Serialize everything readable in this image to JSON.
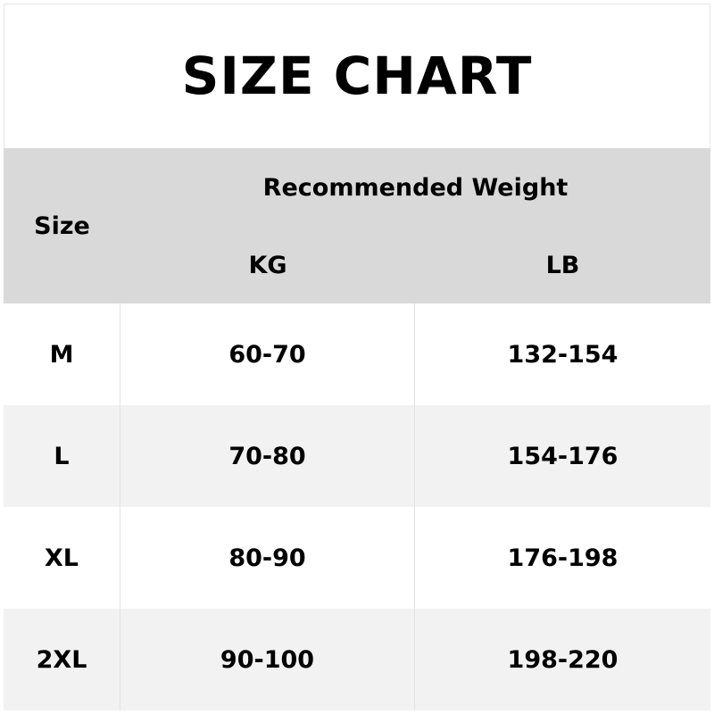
{
  "title": "SIZE CHART",
  "header": {
    "size": "Size",
    "group": "Recommended Weight",
    "kg": "KG",
    "lb": "LB"
  },
  "rows": [
    {
      "size": "M",
      "kg": "60-70",
      "lb": "132-154"
    },
    {
      "size": "L",
      "kg": "70-80",
      "lb": "154-176"
    },
    {
      "size": "XL",
      "kg": "80-90",
      "lb": "176-198"
    },
    {
      "size": "2XL",
      "kg": "90-100",
      "lb": "198-220"
    }
  ],
  "colors": {
    "header_bg": "#d9d9d9",
    "alt_row_bg": "#f2f2f2",
    "row_bg": "#ffffff"
  }
}
